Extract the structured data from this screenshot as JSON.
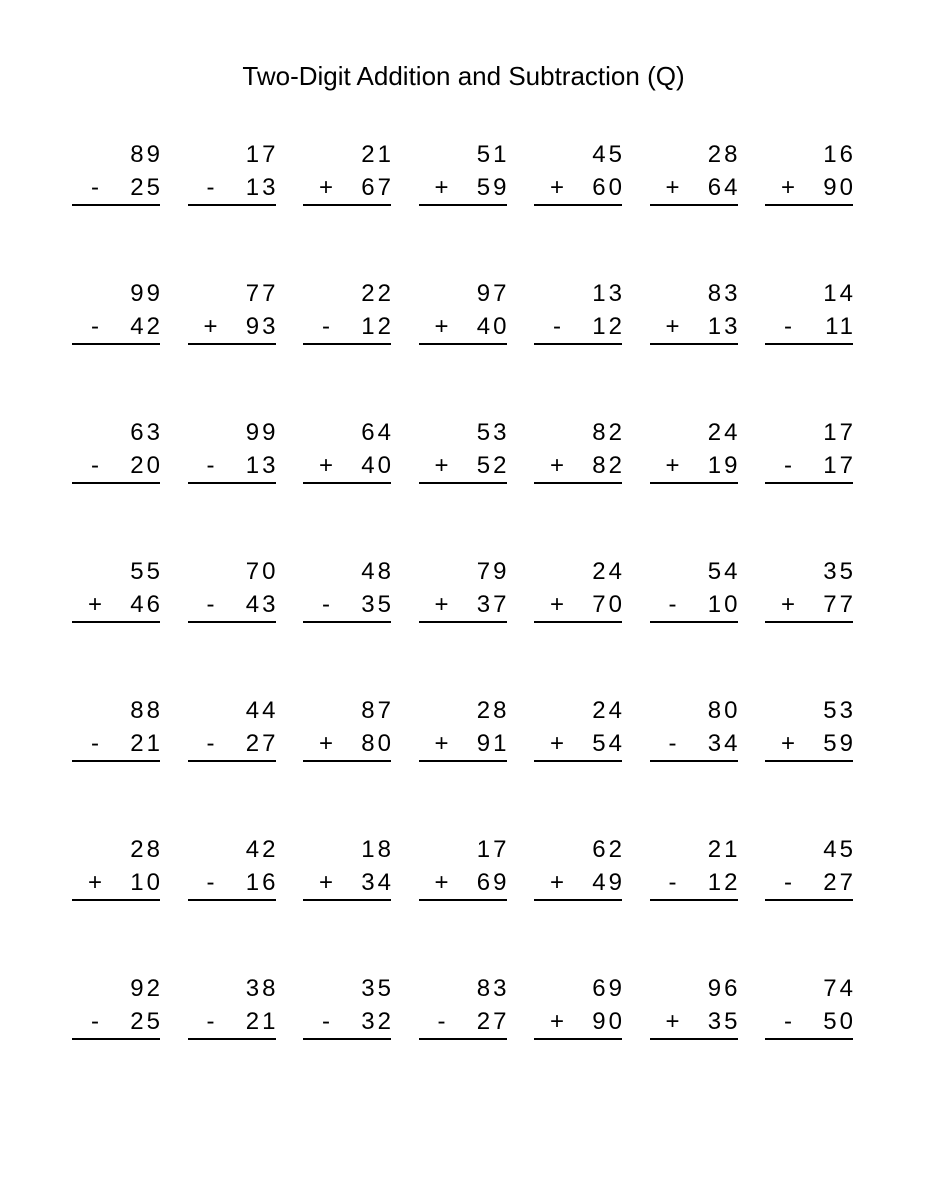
{
  "title": "Two-Digit Addition and Subtraction (Q)",
  "colors": {
    "text": "#000000",
    "background": "#ffffff",
    "answer_rule": "#000000"
  },
  "worksheet": {
    "rows": [
      [
        {
          "top": "89",
          "op": "-",
          "bottom": "25"
        },
        {
          "top": "17",
          "op": "-",
          "bottom": "13"
        },
        {
          "top": "21",
          "op": "+",
          "bottom": "67"
        },
        {
          "top": "51",
          "op": "+",
          "bottom": "59"
        },
        {
          "top": "45",
          "op": "+",
          "bottom": "60"
        },
        {
          "top": "28",
          "op": "+",
          "bottom": "64"
        },
        {
          "top": "16",
          "op": "+",
          "bottom": "90"
        }
      ],
      [
        {
          "top": "99",
          "op": "-",
          "bottom": "42"
        },
        {
          "top": "77",
          "op": "+",
          "bottom": "93"
        },
        {
          "top": "22",
          "op": "-",
          "bottom": "12"
        },
        {
          "top": "97",
          "op": "+",
          "bottom": "40"
        },
        {
          "top": "13",
          "op": "-",
          "bottom": "12"
        },
        {
          "top": "83",
          "op": "+",
          "bottom": "13"
        },
        {
          "top": "14",
          "op": "-",
          "bottom": "11"
        }
      ],
      [
        {
          "top": "63",
          "op": "-",
          "bottom": "20"
        },
        {
          "top": "99",
          "op": "-",
          "bottom": "13"
        },
        {
          "top": "64",
          "op": "+",
          "bottom": "40"
        },
        {
          "top": "53",
          "op": "+",
          "bottom": "52"
        },
        {
          "top": "82",
          "op": "+",
          "bottom": "82"
        },
        {
          "top": "24",
          "op": "+",
          "bottom": "19"
        },
        {
          "top": "17",
          "op": "-",
          "bottom": "17"
        }
      ],
      [
        {
          "top": "55",
          "op": "+",
          "bottom": "46"
        },
        {
          "top": "70",
          "op": "-",
          "bottom": "43"
        },
        {
          "top": "48",
          "op": "-",
          "bottom": "35"
        },
        {
          "top": "79",
          "op": "+",
          "bottom": "37"
        },
        {
          "top": "24",
          "op": "+",
          "bottom": "70"
        },
        {
          "top": "54",
          "op": "-",
          "bottom": "10"
        },
        {
          "top": "35",
          "op": "+",
          "bottom": "77"
        }
      ],
      [
        {
          "top": "88",
          "op": "-",
          "bottom": "21"
        },
        {
          "top": "44",
          "op": "-",
          "bottom": "27"
        },
        {
          "top": "87",
          "op": "+",
          "bottom": "80"
        },
        {
          "top": "28",
          "op": "+",
          "bottom": "91"
        },
        {
          "top": "24",
          "op": "+",
          "bottom": "54"
        },
        {
          "top": "80",
          "op": "-",
          "bottom": "34"
        },
        {
          "top": "53",
          "op": "+",
          "bottom": "59"
        }
      ],
      [
        {
          "top": "28",
          "op": "+",
          "bottom": "10"
        },
        {
          "top": "42",
          "op": "-",
          "bottom": "16"
        },
        {
          "top": "18",
          "op": "+",
          "bottom": "34"
        },
        {
          "top": "17",
          "op": "+",
          "bottom": "69"
        },
        {
          "top": "62",
          "op": "+",
          "bottom": "49"
        },
        {
          "top": "21",
          "op": "-",
          "bottom": "12"
        },
        {
          "top": "45",
          "op": "-",
          "bottom": "27"
        }
      ],
      [
        {
          "top": "92",
          "op": "-",
          "bottom": "25"
        },
        {
          "top": "38",
          "op": "-",
          "bottom": "21"
        },
        {
          "top": "35",
          "op": "-",
          "bottom": "32"
        },
        {
          "top": "83",
          "op": "-",
          "bottom": "27"
        },
        {
          "top": "69",
          "op": "+",
          "bottom": "90"
        },
        {
          "top": "96",
          "op": "+",
          "bottom": "35"
        },
        {
          "top": "74",
          "op": "-",
          "bottom": "50"
        }
      ]
    ]
  }
}
